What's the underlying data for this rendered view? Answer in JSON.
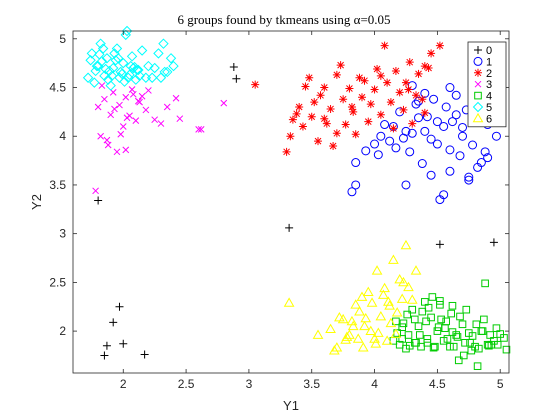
{
  "chart_data": {
    "type": "scatter",
    "title": "6 groups found by tkmeans using α=0.05",
    "xlabel": "Y1",
    "ylabel": "Y2",
    "xlim": [
      1.6,
      5.07
    ],
    "ylim": [
      1.57,
      5.08
    ],
    "xticks": [
      2,
      2.5,
      3,
      3.5,
      4,
      4.5,
      5
    ],
    "xtick_labels": [
      "2",
      "2.5",
      "3",
      "3.5",
      "4",
      "4.5",
      "5"
    ],
    "yticks": [
      2,
      2.5,
      3,
      3.5,
      4,
      4.5,
      5
    ],
    "ytick_labels": [
      "2",
      "2.5",
      "3",
      "3.5",
      "4",
      "4.5",
      "5"
    ],
    "grid": false,
    "legend": {
      "position": "top-right"
    },
    "series": [
      {
        "name": "0",
        "marker": "plus",
        "color": "#000000",
        "x": [
          1.8,
          1.85,
          1.87,
          1.92,
          1.97,
          2.0,
          2.17,
          2.88,
          2.9,
          3.32,
          4.52,
          4.95
        ],
        "y": [
          3.34,
          1.75,
          1.85,
          2.09,
          2.25,
          1.87,
          1.76,
          4.71,
          4.59,
          3.06,
          2.89,
          2.91
        ]
      },
      {
        "name": "1",
        "marker": "circle",
        "color": "#0000ff",
        "x": [
          3.85,
          3.82,
          3.85,
          3.93,
          4.0,
          4.03,
          4.05,
          4.08,
          4.12,
          4.15,
          4.17,
          4.2,
          4.23,
          4.25,
          4.28,
          4.3,
          4.33,
          4.35,
          4.38,
          4.4,
          4.42,
          4.45,
          4.47,
          4.5,
          4.52,
          4.55,
          4.57,
          4.6,
          4.62,
          4.65,
          4.68,
          4.7,
          4.73,
          4.75,
          4.78,
          4.8,
          4.82,
          4.85,
          4.88,
          4.9,
          4.93,
          4.95,
          4.97,
          5.0,
          4.25,
          4.35,
          4.45,
          4.55,
          4.65,
          4.75,
          4.85,
          4.4,
          4.5,
          4.6,
          4.7,
          4.8,
          4.9,
          4.3,
          4.6
        ],
        "y": [
          3.5,
          3.43,
          3.73,
          3.85,
          3.92,
          3.81,
          4.0,
          4.12,
          3.95,
          4.1,
          3.88,
          4.25,
          3.98,
          3.5,
          3.84,
          4.03,
          4.33,
          4.19,
          3.72,
          4.05,
          4.2,
          3.6,
          4.38,
          3.92,
          3.35,
          4.1,
          4.3,
          3.64,
          4.15,
          4.42,
          3.8,
          4.0,
          4.27,
          3.55,
          3.91,
          4.2,
          3.68,
          4.35,
          3.84,
          4.12,
          4.48,
          4.6,
          4.0,
          4.25,
          4.05,
          4.36,
          3.97,
          3.4,
          4.22,
          3.58,
          3.73,
          4.44,
          4.15,
          3.86,
          4.09,
          4.3,
          3.78,
          4.52,
          4.5
        ]
      },
      {
        "name": "2",
        "marker": "star",
        "color": "#ff0000",
        "x": [
          3.05,
          3.3,
          3.35,
          3.33,
          3.4,
          3.43,
          3.48,
          3.5,
          3.52,
          3.55,
          3.57,
          3.6,
          3.62,
          3.65,
          3.67,
          3.7,
          3.73,
          3.75,
          3.77,
          3.8,
          3.83,
          3.85,
          3.88,
          3.9,
          3.92,
          3.95,
          3.97,
          4.0,
          4.02,
          4.05,
          4.08,
          4.1,
          4.13,
          4.15,
          4.17,
          4.2,
          4.23,
          4.25,
          4.28,
          4.3,
          4.33,
          4.35,
          4.38,
          4.4,
          4.43,
          4.45,
          3.45,
          3.6,
          3.82,
          4.05,
          4.27,
          4.4,
          4.52,
          3.7,
          3.38
        ],
        "y": [
          4.53,
          3.84,
          4.17,
          4.0,
          4.3,
          4.1,
          4.6,
          4.2,
          4.35,
          3.95,
          4.42,
          4.5,
          4.13,
          4.28,
          3.9,
          4.63,
          4.73,
          4.38,
          4.12,
          4.49,
          4.25,
          4.02,
          4.6,
          4.4,
          4.57,
          4.15,
          4.33,
          4.48,
          4.69,
          4.22,
          4.93,
          4.55,
          4.35,
          4.08,
          4.67,
          4.45,
          4.27,
          4.55,
          4.76,
          4.13,
          4.42,
          4.64,
          4.38,
          4.24,
          4.7,
          4.85,
          4.51,
          4.18,
          4.3,
          4.62,
          4.48,
          4.72,
          4.93,
          4.03,
          4.23
        ]
      },
      {
        "name": "3",
        "marker": "cross",
        "color": "#ff00ff",
        "x": [
          1.58,
          1.78,
          1.8,
          1.82,
          1.85,
          1.87,
          1.9,
          1.92,
          1.95,
          1.97,
          2.0,
          2.02,
          2.05,
          2.07,
          2.1,
          2.12,
          2.15,
          2.18,
          2.2,
          2.25,
          2.3,
          2.35,
          2.42,
          2.45,
          2.6,
          2.62,
          2.8,
          1.83,
          1.88,
          1.93,
          1.98,
          2.03,
          2.08,
          2.13,
          2.02
        ],
        "y": [
          4.25,
          3.44,
          4.3,
          4.0,
          4.38,
          3.96,
          4.22,
          4.45,
          3.84,
          4.32,
          4.1,
          4.4,
          4.21,
          4.48,
          4.16,
          4.36,
          4.41,
          4.27,
          4.47,
          4.17,
          4.13,
          4.3,
          4.39,
          4.18,
          4.07,
          4.07,
          4.34,
          4.52,
          3.91,
          4.28,
          4.02,
          4.19,
          4.43,
          4.35,
          3.86
        ]
      },
      {
        "name": "4",
        "marker": "square",
        "color": "#00cc00",
        "x": [
          4.15,
          4.17,
          4.2,
          4.22,
          4.25,
          4.27,
          4.3,
          4.32,
          4.35,
          4.37,
          4.4,
          4.42,
          4.45,
          4.47,
          4.5,
          4.52,
          4.55,
          4.57,
          4.6,
          4.62,
          4.65,
          4.67,
          4.7,
          4.72,
          4.75,
          4.77,
          4.8,
          4.82,
          4.85,
          4.87,
          4.9,
          4.92,
          4.95,
          4.97,
          5.0,
          5.03,
          5.05,
          4.18,
          4.28,
          4.38,
          4.48,
          4.58,
          4.68,
          4.78,
          4.88,
          4.98,
          4.23,
          4.33,
          4.43,
          4.53,
          4.63,
          4.73,
          4.83,
          4.93,
          4.26,
          4.36,
          4.46,
          4.56,
          4.66,
          4.76,
          4.86,
          4.41,
          4.51,
          4.61,
          4.71,
          4.81,
          4.91,
          4.22,
          4.32,
          4.42,
          4.52,
          4.62
        ],
        "y": [
          1.9,
          2.1,
          1.86,
          2.04,
          1.82,
          1.96,
          2.22,
          1.88,
          2.05,
          1.84,
          2.3,
          1.92,
          2.14,
          1.83,
          2.0,
          2.31,
          1.9,
          2.1,
          1.84,
          2.26,
          1.96,
          1.7,
          2.07,
          1.88,
          1.98,
          1.8,
          1.84,
          1.64,
          2.0,
          2.12,
          1.86,
          1.96,
          1.9,
          2.03,
          1.97,
          1.93,
          1.81,
          1.98,
          1.85,
          2.2,
          1.84,
          1.92,
          2.15,
          1.95,
          2.49,
          1.86,
          2.08,
          1.88,
          2.24,
          2.12,
          1.84,
          2.22,
          1.82,
          1.86,
          2.17,
          1.96,
          2.35,
          2.03,
          1.94,
          1.88,
          2.0,
          2.1,
          2.04,
          2.18,
          1.75,
          2.07,
          1.85,
          1.92,
          2.12,
          1.88,
          2.27,
          1.99
        ]
      },
      {
        "name": "5",
        "marker": "diamond",
        "color": "#00ffff",
        "x": [
          1.72,
          1.75,
          1.77,
          1.8,
          1.82,
          1.85,
          1.87,
          1.9,
          1.92,
          1.95,
          1.97,
          2.0,
          2.02,
          2.05,
          2.07,
          2.1,
          2.12,
          2.15,
          2.18,
          2.2,
          2.25,
          2.28,
          2.3,
          2.32,
          2.35,
          2.38,
          2.4,
          1.78,
          1.83,
          1.88,
          1.93,
          1.98,
          2.03,
          2.08,
          2.13,
          2.23,
          2.33,
          1.74,
          1.79,
          1.84,
          1.89,
          1.94,
          1.99,
          2.04,
          2.09,
          1.86,
          1.96,
          2.01,
          2.06,
          2.11,
          1.81,
          1.91
        ],
        "y": [
          4.6,
          4.85,
          4.55,
          4.72,
          4.95,
          4.62,
          4.8,
          4.52,
          4.7,
          4.9,
          4.6,
          4.75,
          5.04,
          4.63,
          4.82,
          4.58,
          4.68,
          4.88,
          4.6,
          4.72,
          4.7,
          4.85,
          4.6,
          4.95,
          4.66,
          4.8,
          4.72,
          4.67,
          4.77,
          4.58,
          4.85,
          4.66,
          5.08,
          4.7,
          4.62,
          4.6,
          4.66,
          4.78,
          4.72,
          4.9,
          4.67,
          4.78,
          4.64,
          4.6,
          4.71,
          4.69,
          4.8,
          4.56,
          4.72,
          4.68,
          4.84,
          4.62
        ]
      },
      {
        "name": "6",
        "marker": "triangle",
        "color": "#ffff00",
        "x": [
          3.32,
          3.55,
          3.65,
          3.7,
          3.75,
          3.78,
          3.8,
          3.82,
          3.85,
          3.87,
          3.9,
          3.92,
          3.95,
          3.97,
          4.0,
          4.02,
          4.05,
          4.07,
          4.1,
          4.12,
          4.15,
          4.17,
          4.2,
          4.22,
          4.25,
          4.27,
          4.3,
          4.33,
          3.68,
          3.72,
          3.77,
          3.83,
          3.88,
          3.93,
          3.98,
          4.03,
          4.08,
          4.13,
          4.18,
          4.23,
          3.91,
          4.01,
          4.11
        ],
        "y": [
          2.29,
          1.96,
          2.02,
          1.83,
          2.12,
          1.94,
          1.96,
          2.1,
          2.27,
          1.92,
          2.35,
          2.05,
          2.4,
          2.0,
          1.92,
          2.62,
          2.15,
          2.37,
          1.9,
          2.26,
          2.73,
          1.97,
          2.53,
          2.33,
          2.88,
          2.45,
          2.32,
          2.62,
          1.8,
          2.14,
          1.91,
          2.05,
          2.2,
          2.13,
          2.29,
          1.98,
          2.44,
          2.08,
          2.19,
          2.5,
          1.83,
          1.87,
          2.3
        ]
      }
    ]
  }
}
